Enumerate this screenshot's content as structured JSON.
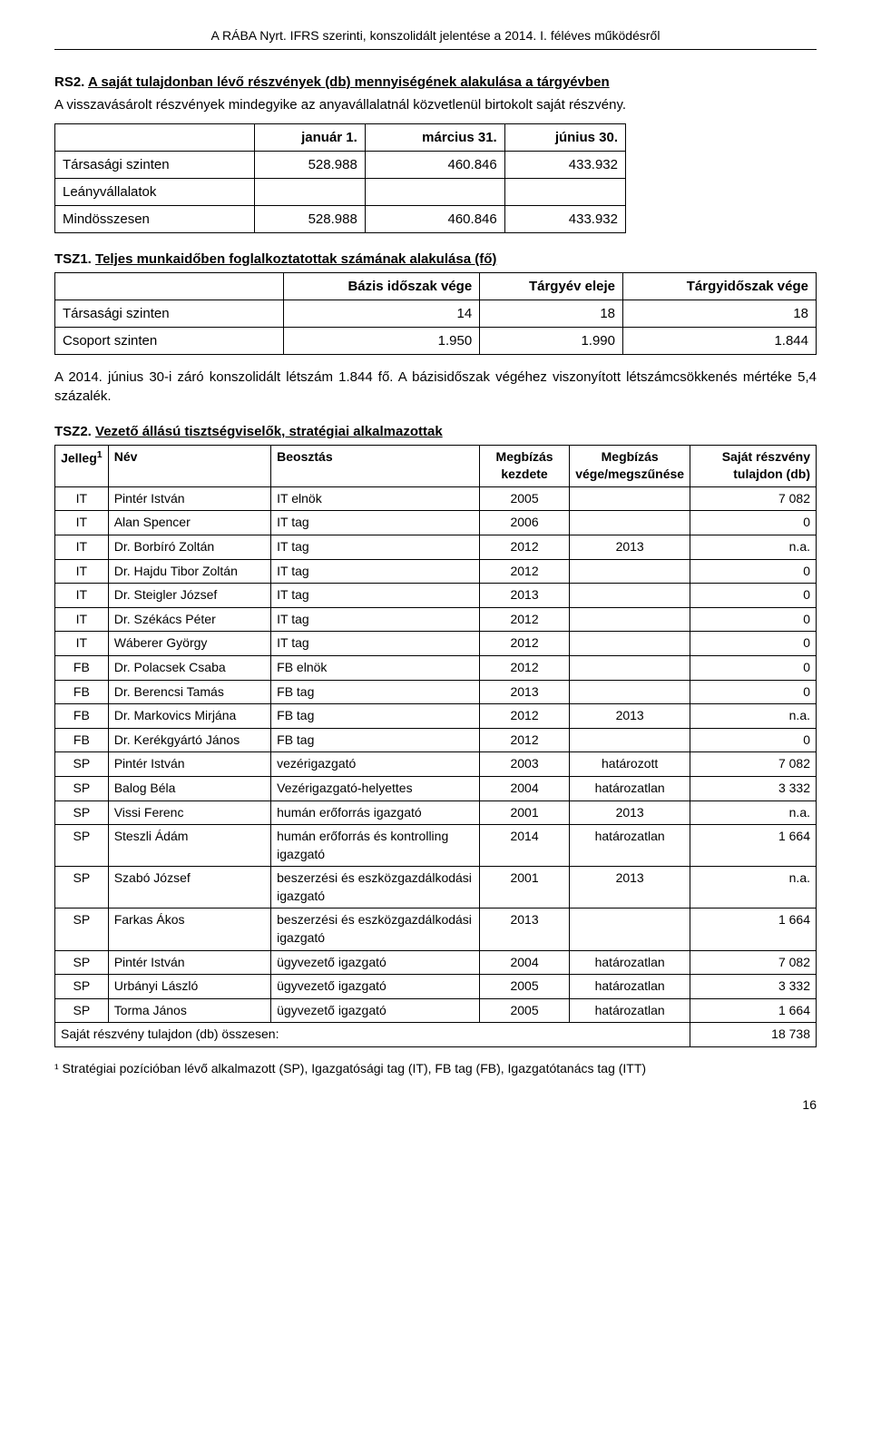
{
  "header": "A RÁBA Nyrt. IFRS szerinti, konszolidált jelentése a 2014. I. féléves működésről",
  "rs2": {
    "title_code": "RS2.",
    "title_text": "A saját tulajdonban lévő részvények (db) mennyiségének alakulása a tárgyévben",
    "intro": "A visszavásárolt részvények mindegyike az anyavállalatnál közvetlenül birtokolt saját részvény.",
    "headers": [
      "",
      "január 1.",
      "március 31.",
      "június 30."
    ],
    "rows": [
      [
        "Társasági szinten",
        "528.988",
        "460.846",
        "433.932"
      ],
      [
        "Leányvállalatok",
        "",
        "",
        ""
      ],
      [
        "Mindösszesen",
        "528.988",
        "460.846",
        "433.932"
      ]
    ]
  },
  "tsz1": {
    "title_code": "TSZ1.",
    "title_text": "Teljes munkaidőben foglalkoztatottak számának alakulása (fő)",
    "headers": [
      "",
      "Bázis időszak vége",
      "Tárgyév eleje",
      "Tárgyidőszak vége"
    ],
    "rows": [
      [
        "Társasági szinten",
        "14",
        "18",
        "18"
      ],
      [
        "Csoport szinten",
        "1.950",
        "1.990",
        "1.844"
      ]
    ],
    "paragraph": "A 2014. június 30-i záró konszolidált létszám 1.844 fő. A bázisidőszak végéhez viszonyított létszámcsökkenés mértéke 5,4 százalék."
  },
  "tsz2": {
    "title_code": "TSZ2.",
    "title_text": "Vezető állású tisztségviselők, stratégiai alkalmazottak",
    "headers": [
      "Jelleg",
      "Név",
      "Beosztás",
      "Megbízás kezdete",
      "Megbízás vége/megszűnése",
      "Saját részvény tulajdon (db)"
    ],
    "footnote_sup": "1",
    "rows": [
      [
        "IT",
        "Pintér István",
        "IT elnök",
        "2005",
        "",
        "7 082"
      ],
      [
        "IT",
        "Alan Spencer",
        "IT tag",
        "2006",
        "",
        "0"
      ],
      [
        "IT",
        "Dr. Borbíró Zoltán",
        "IT tag",
        "2012",
        "2013",
        "n.a."
      ],
      [
        "IT",
        "Dr. Hajdu Tibor Zoltán",
        "IT tag",
        "2012",
        "",
        "0"
      ],
      [
        "IT",
        "Dr. Steigler József",
        "IT tag",
        "2013",
        "",
        "0"
      ],
      [
        "IT",
        "Dr. Székács Péter",
        "IT tag",
        "2012",
        "",
        "0"
      ],
      [
        "IT",
        "Wáberer György",
        "IT tag",
        "2012",
        "",
        "0"
      ],
      [
        "FB",
        "Dr. Polacsek Csaba",
        "FB elnök",
        "2012",
        "",
        "0"
      ],
      [
        "FB",
        "Dr. Berencsi Tamás",
        "FB tag",
        "2013",
        "",
        "0"
      ],
      [
        "FB",
        "Dr. Markovics Mirjána",
        "FB tag",
        "2012",
        "2013",
        "n.a."
      ],
      [
        "FB",
        "Dr. Kerékgyártó János",
        "FB tag",
        "2012",
        "",
        "0"
      ],
      [
        "SP",
        "Pintér István",
        "vezérigazgató",
        "2003",
        "határozott",
        "7 082"
      ],
      [
        "SP",
        "Balog Béla",
        "Vezérigazgató-helyettes",
        "2004",
        "határozatlan",
        "3 332"
      ],
      [
        "SP",
        "Vissi Ferenc",
        "humán erőforrás igazgató",
        "2001",
        "2013",
        "n.a."
      ],
      [
        "SP",
        "Steszli Ádám",
        "humán erőforrás és kontrolling igazgató",
        "2014",
        "határozatlan",
        "1 664"
      ],
      [
        "SP",
        "Szabó József",
        "beszerzési és eszközgazdálkodási igazgató",
        "2001",
        "2013",
        "n.a."
      ],
      [
        "SP",
        "Farkas Ákos",
        "beszerzési és eszközgazdálkodási igazgató",
        "2013",
        "",
        "1 664"
      ],
      [
        "SP",
        "Pintér István",
        "ügyvezető igazgató",
        "2004",
        "határozatlan",
        "7 082"
      ],
      [
        "SP",
        "Urbányi László",
        "ügyvezető igazgató",
        "2005",
        "határozatlan",
        "3 332"
      ],
      [
        "SP",
        "Torma János",
        "ügyvezető igazgató",
        "2005",
        "határozatlan",
        "1 664"
      ]
    ],
    "total_label": "Saját részvény tulajdon (db) összesen:",
    "total_value": "18 738",
    "footnote": "¹ Stratégiai pozícióban lévő alkalmazott (SP), Igazgatósági tag (IT), FB tag (FB), Igazgatótanács tag (ITT)"
  },
  "page_number": "16"
}
